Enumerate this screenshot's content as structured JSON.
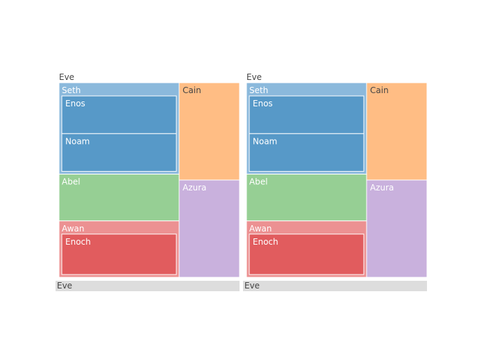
{
  "chart_data": [
    {
      "type": "treemap",
      "root": "Eve",
      "pathbar_label": "Eve",
      "nodes": [
        {
          "label": "Eve",
          "parent": "",
          "value": 10
        },
        {
          "label": "Seth",
          "parent": "Eve",
          "value": 2
        },
        {
          "label": "Cain",
          "parent": "Eve",
          "value": 1
        },
        {
          "label": "Abel",
          "parent": "Eve",
          "value": 1
        },
        {
          "label": "Awan",
          "parent": "Eve",
          "value": 1
        },
        {
          "label": "Azura",
          "parent": "Eve",
          "value": 1
        },
        {
          "label": "Enos",
          "parent": "Seth",
          "value": 1
        },
        {
          "label": "Noam",
          "parent": "Seth",
          "value": 1
        },
        {
          "label": "Enoch",
          "parent": "Awan",
          "value": 1
        }
      ]
    },
    {
      "type": "treemap",
      "root": "Eve",
      "pathbar_label": "Eve",
      "nodes": [
        {
          "label": "Eve",
          "parent": "",
          "value": 10
        },
        {
          "label": "Seth",
          "parent": "Eve",
          "value": 2
        },
        {
          "label": "Cain",
          "parent": "Eve",
          "value": 1
        },
        {
          "label": "Abel",
          "parent": "Eve",
          "value": 1
        },
        {
          "label": "Awan",
          "parent": "Eve",
          "value": 1
        },
        {
          "label": "Azura",
          "parent": "Eve",
          "value": 1
        },
        {
          "label": "Enos",
          "parent": "Seth",
          "value": 1
        },
        {
          "label": "Noam",
          "parent": "Seth",
          "value": 1
        },
        {
          "label": "Enoch",
          "parent": "Awan",
          "value": 1
        }
      ]
    }
  ],
  "colors": {
    "Seth": "#8bb9dc",
    "Enos": "#5799c8",
    "Noam": "#5799c8",
    "Cain": "#ffbd84",
    "Abel": "#96cf94",
    "Azura": "#c9b1dd",
    "Awan": "#ec9192",
    "Enoch": "#e15c5e",
    "pathbar": "#dddddd",
    "root_text": "#444444",
    "node_text": "#ffffff",
    "light_node_text": "#444444"
  }
}
